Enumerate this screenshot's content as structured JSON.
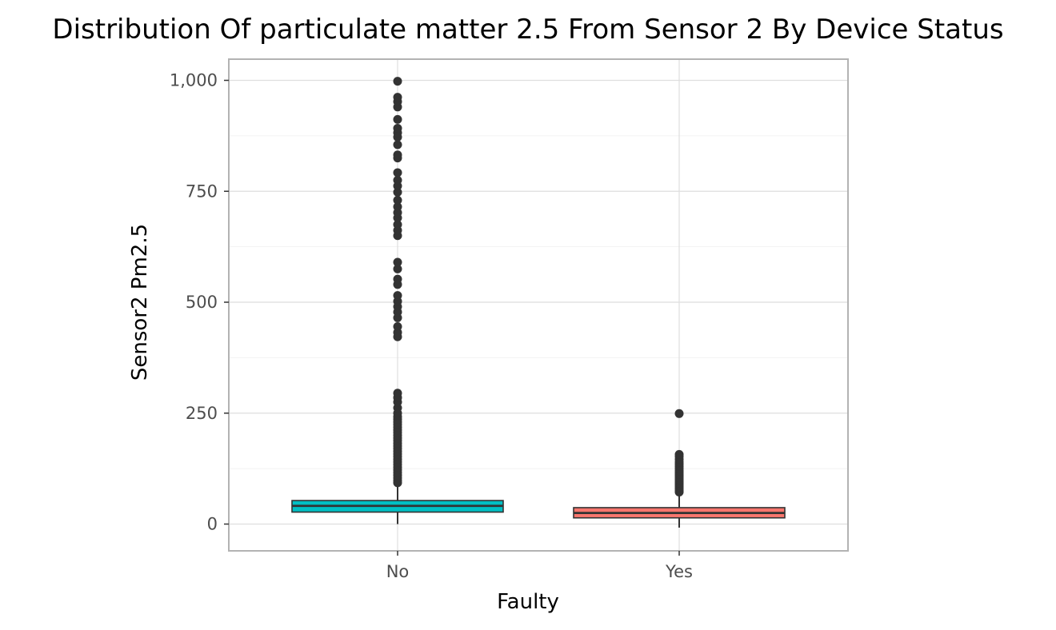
{
  "chart_data": {
    "type": "boxplot",
    "title": "Distribution Of particulate matter 2.5 From Sensor 2 By Device Status",
    "xlabel": "Faulty",
    "ylabel": "Sensor2 Pm2.5",
    "categories": [
      "No",
      "Yes"
    ],
    "ylim": [
      -60,
      1045
    ],
    "yticks": [
      0,
      250,
      500,
      750,
      1000
    ],
    "ytick_labels": [
      "0",
      "250",
      "500",
      "750",
      "1,000"
    ],
    "grid": true,
    "legend": "none",
    "boxes": [
      {
        "category": "No",
        "fill": "#00bfc4",
        "whisker_low": 0,
        "q1": 27,
        "median": 41,
        "q3": 53,
        "whisker_high": 90,
        "outliers": [
          93,
          98,
          104,
          110,
          116,
          122,
          128,
          134,
          140,
          146,
          152,
          158,
          164,
          170,
          176,
          182,
          188,
          194,
          200,
          206,
          212,
          218,
          224,
          230,
          236,
          242,
          250,
          262,
          275,
          285,
          295,
          422,
          432,
          445,
          465,
          478,
          490,
          502,
          515,
          540,
          552,
          575,
          590,
          650,
          662,
          675,
          690,
          702,
          715,
          730,
          748,
          762,
          775,
          792,
          825,
          832,
          855,
          872,
          882,
          892,
          912,
          940,
          952,
          962,
          998
        ]
      },
      {
        "category": "Yes",
        "fill": "#f8766d",
        "whisker_low": -8,
        "q1": 14,
        "median": 25,
        "q3": 37,
        "whisker_high": 68,
        "outliers": [
          72,
          76,
          80,
          84,
          88,
          92,
          96,
          100,
          104,
          108,
          112,
          116,
          120,
          125,
          130,
          135,
          140,
          146,
          152,
          157,
          249
        ]
      }
    ]
  }
}
